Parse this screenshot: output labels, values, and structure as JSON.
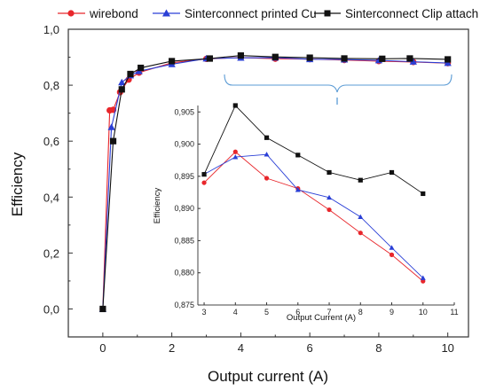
{
  "chart_data": [
    {
      "type": "line",
      "xlabel": "Output current (A)",
      "ylabel": "Efficiency",
      "xlim": [
        -1,
        10.6
      ],
      "ylim": [
        -0.1,
        1.0
      ],
      "xticks": [
        "0",
        "2",
        "4",
        "6",
        "8",
        "10"
      ],
      "yticks": [
        "0,0",
        "0,2",
        "0,4",
        "0,6",
        "0,8",
        "1,0"
      ],
      "legend_position": "top",
      "series": [
        {
          "name": "wirebond",
          "color": "#e8262b",
          "marker": "circle",
          "x": [
            0.0,
            0.2,
            0.3,
            0.5,
            0.75,
            1.05,
            2.0,
            3.0,
            4.0,
            5.0,
            6.0,
            7.0,
            8.0,
            9.0,
            10.0
          ],
          "y": [
            0.0,
            0.71,
            0.712,
            0.775,
            0.82,
            0.845,
            0.88,
            0.894,
            0.8988,
            0.8947,
            0.8931,
            0.8898,
            0.8862,
            0.8828,
            0.8787
          ]
        },
        {
          "name": "Sinterconnect printed Cu",
          "color": "#2a3fd6",
          "marker": "triangle",
          "x": [
            0.0,
            0.25,
            0.55,
            0.8,
            1.05,
            2.0,
            3.0,
            4.0,
            5.0,
            6.0,
            7.0,
            8.0,
            9.0,
            10.0
          ],
          "y": [
            0.0,
            0.65,
            0.81,
            0.835,
            0.85,
            0.875,
            0.8953,
            0.898,
            0.8984,
            0.8929,
            0.8917,
            0.8887,
            0.8839,
            0.8792
          ]
        },
        {
          "name": "Sinterconnect Clip attach",
          "color": "#111111",
          "marker": "square",
          "x": [
            0.0,
            0.3,
            0.55,
            0.8,
            1.1,
            2.0,
            3.1,
            4.0,
            5.0,
            6.0,
            7.0,
            8.1,
            8.9,
            10.0
          ],
          "y": [
            0.0,
            0.6,
            0.785,
            0.84,
            0.862,
            0.886,
            0.8953,
            0.906,
            0.901,
            0.8983,
            0.8956,
            0.8944,
            0.8956,
            0.8923
          ]
        }
      ]
    },
    {
      "type": "line",
      "xlabel": "Output Current (A)",
      "ylabel": "Efficiency",
      "xlim": [
        2.8,
        11
      ],
      "ylim": [
        0.875,
        0.906
      ],
      "xticks": [
        "3",
        "4",
        "5",
        "6",
        "7",
        "8",
        "9",
        "10",
        "11"
      ],
      "yticks": [
        "0,875",
        "0,880",
        "0,885",
        "0,890",
        "0,895",
        "0,900",
        "0,905"
      ],
      "series": [
        {
          "name": "wirebond",
          "color": "#e8262b",
          "marker": "circle",
          "x": [
            3,
            4,
            5,
            6,
            7,
            8,
            9,
            10
          ],
          "y": [
            0.894,
            0.8988,
            0.8947,
            0.8931,
            0.8898,
            0.8862,
            0.8828,
            0.8787
          ]
        },
        {
          "name": "Sinterconnect printed Cu",
          "color": "#2a3fd6",
          "marker": "triangle",
          "x": [
            3,
            4,
            5,
            6,
            7,
            8,
            9,
            10
          ],
          "y": [
            0.8953,
            0.898,
            0.8984,
            0.8929,
            0.8917,
            0.8887,
            0.8839,
            0.8792
          ]
        },
        {
          "name": "Sinterconnect Clip attach",
          "color": "#111111",
          "marker": "square",
          "x": [
            3,
            4,
            5,
            6,
            7,
            8,
            9,
            10
          ],
          "y": [
            0.8953,
            0.906,
            0.901,
            0.8983,
            0.8956,
            0.8944,
            0.8956,
            0.8923
          ]
        }
      ]
    }
  ],
  "annotation": {
    "bracket_color": "#5b9bd5"
  }
}
